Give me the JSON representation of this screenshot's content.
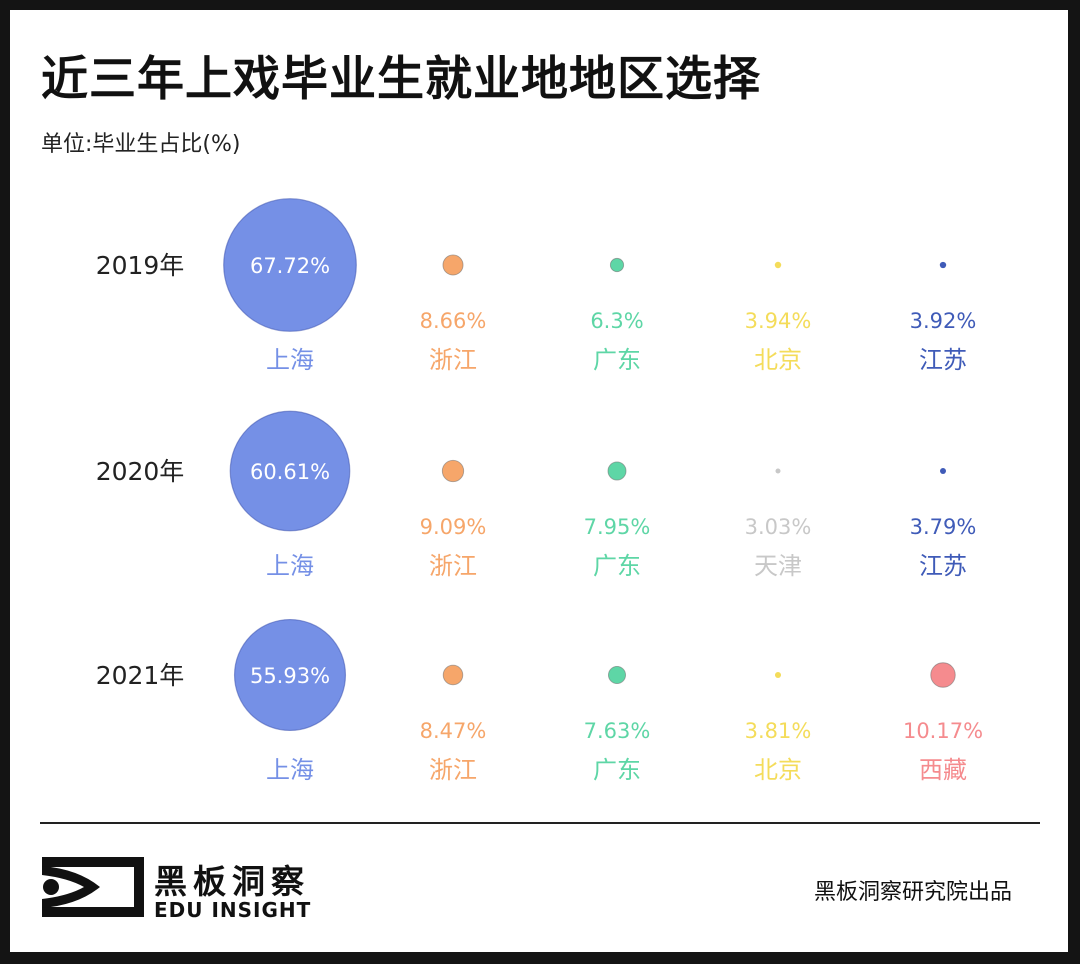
{
  "header": {
    "title": "近三年上戏毕业生就业地地区选择",
    "unit": "单位:毕业生占比(%)"
  },
  "colors": {
    "上海": "#7590E6",
    "浙江": "#F6A66A",
    "广东": "#5ED6A6",
    "北京": "#F4DC5A",
    "江苏": "#3F5BB8",
    "天津": "#C8C8C8",
    "西藏": "#F58B8E"
  },
  "chart_data": {
    "type": "bubble",
    "title": "近三年上戏毕业生就业地地区选择",
    "unit": "毕业生占比(%)",
    "rows": [
      {
        "year": "2019年",
        "items": [
          {
            "region": "上海",
            "value": 67.72,
            "label": "67.72%"
          },
          {
            "region": "浙江",
            "value": 8.66,
            "label": "8.66%"
          },
          {
            "region": "广东",
            "value": 6.3,
            "label": "6.3%"
          },
          {
            "region": "北京",
            "value": 3.94,
            "label": "3.94%"
          },
          {
            "region": "江苏",
            "value": 3.92,
            "label": "3.92%"
          }
        ]
      },
      {
        "year": "2020年",
        "items": [
          {
            "region": "上海",
            "value": 60.61,
            "label": "60.61%"
          },
          {
            "region": "浙江",
            "value": 9.09,
            "label": "9.09%"
          },
          {
            "region": "广东",
            "value": 7.95,
            "label": "7.95%"
          },
          {
            "region": "天津",
            "value": 3.03,
            "label": "3.03%"
          },
          {
            "region": "江苏",
            "value": 3.79,
            "label": "3.79%"
          }
        ]
      },
      {
        "year": "2021年",
        "items": [
          {
            "region": "上海",
            "value": 55.93,
            "label": "55.93%"
          },
          {
            "region": "浙江",
            "value": 8.47,
            "label": "8.47%"
          },
          {
            "region": "广东",
            "value": 7.63,
            "label": "7.63%"
          },
          {
            "region": "北京",
            "value": 3.81,
            "label": "3.81%"
          },
          {
            "region": "西藏",
            "value": 10.17,
            "label": "10.17%"
          }
        ]
      }
    ]
  },
  "footer": {
    "logo_cn": "黑板洞察",
    "logo_en": "EDU INSIGHT",
    "credit": "黑板洞察研究院出品"
  }
}
